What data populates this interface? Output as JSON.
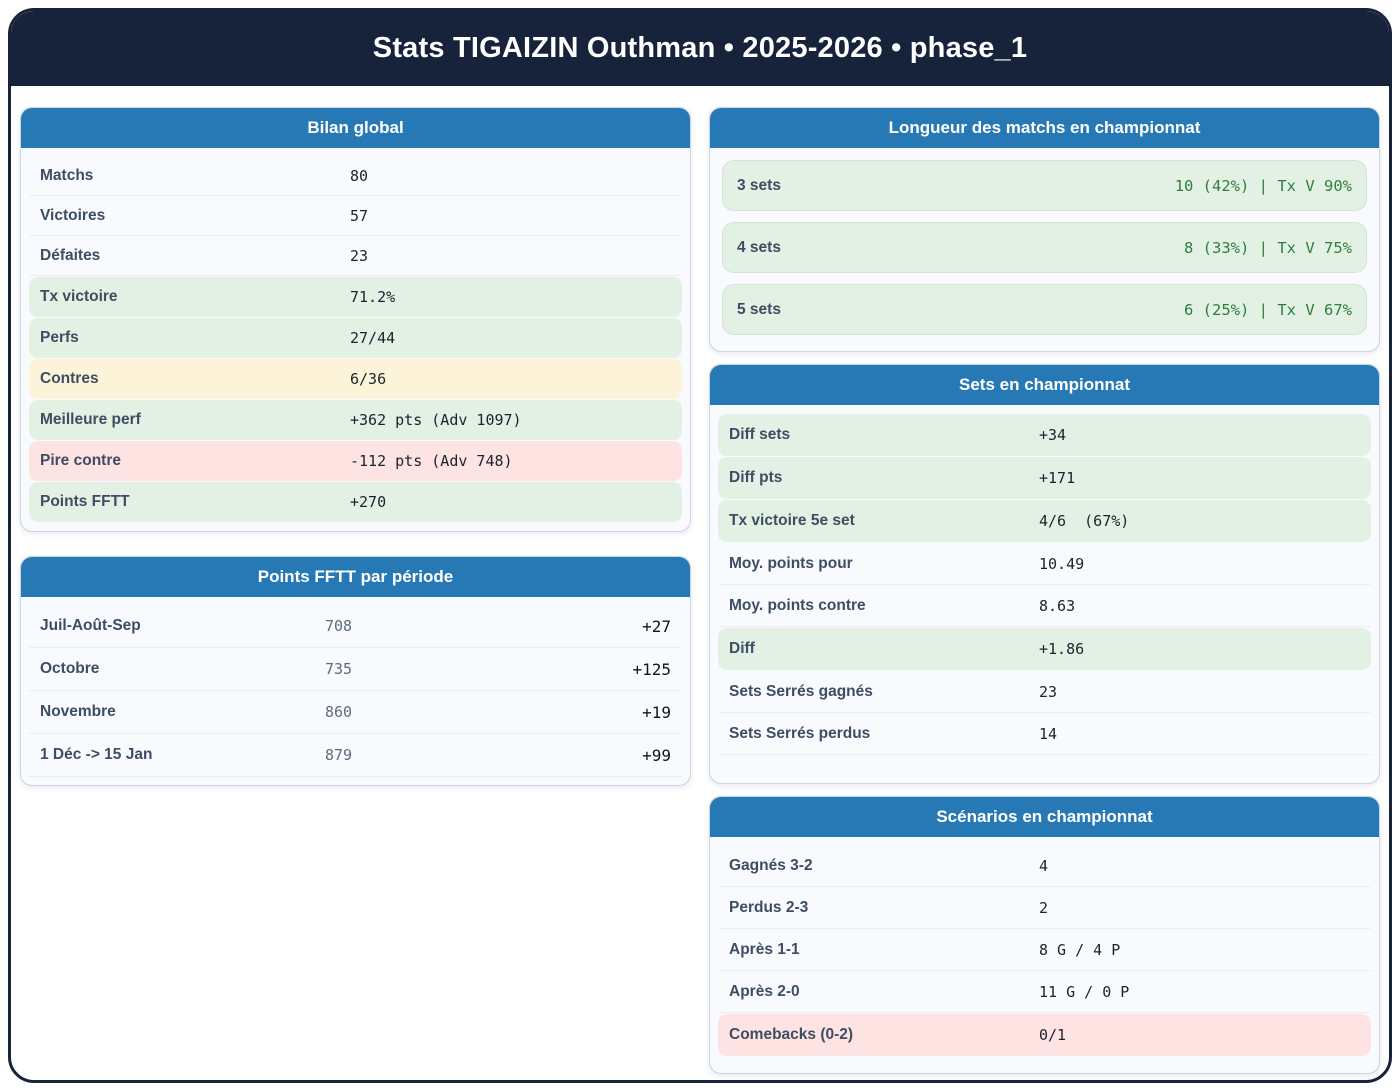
{
  "header": {
    "title": "Stats TIGAIZIN Outhman • 2025-2026 • phase_1"
  },
  "theme": {
    "navy": "#16233b",
    "header_blue": "#2779b5",
    "card_bg": "#f8fafd",
    "card_border": "#c9d6e4",
    "label_color": "#3e4d63",
    "value_color": "#1a232e",
    "muted_value_color": "#5d6c7b",
    "green_text": "#2f7d3f",
    "green_bg": "#e2f1e3",
    "yellow_bg": "#fcf3d8",
    "red_bg": "#fde3e2",
    "separator": "#e9eef4"
  },
  "cards": {
    "bilan": {
      "title": "Bilan global",
      "rows": [
        {
          "label": "Matchs",
          "value": "80",
          "variant": "plain"
        },
        {
          "label": "Victoires",
          "value": "57",
          "variant": "plain"
        },
        {
          "label": "Défaites",
          "value": "23",
          "variant": "plain"
        },
        {
          "label": "Tx victoire",
          "value": "71.2%",
          "variant": "green"
        },
        {
          "label": "Perfs",
          "value": "27/44",
          "variant": "green"
        },
        {
          "label": "Contres",
          "value": "6/36",
          "variant": "yellow"
        },
        {
          "label": "Meilleure perf",
          "value": "+362 pts (Adv 1097)",
          "variant": "green"
        },
        {
          "label": "Pire contre",
          "value": "-112 pts (Adv 748)",
          "variant": "red"
        },
        {
          "label": "Points FFTT",
          "value": "+270",
          "variant": "green"
        }
      ]
    },
    "periodes": {
      "title": "Points FFTT par période",
      "rows": [
        {
          "label": "Juil-Août-Sep",
          "value": "708",
          "delta": "+27"
        },
        {
          "label": "Octobre",
          "value": "735",
          "delta": "+125"
        },
        {
          "label": "Novembre",
          "value": "860",
          "delta": "+19"
        },
        {
          "label": "1 Déc -> 15 Jan",
          "value": "879",
          "delta": "+99"
        }
      ]
    },
    "longueur": {
      "title": "Longueur des matchs en championnat",
      "rows": [
        {
          "label": "3 sets",
          "value": "10 (42%) | Tx V 90%"
        },
        {
          "label": "4 sets",
          "value": "8 (33%) | Tx V 75%"
        },
        {
          "label": "5 sets",
          "value": "6 (25%) | Tx V 67%"
        }
      ]
    },
    "sets": {
      "title": "Sets en championnat",
      "rows": [
        {
          "label": "Diff sets",
          "value": "+34",
          "variant": "green"
        },
        {
          "label": "Diff pts",
          "value": "+171",
          "variant": "green"
        },
        {
          "label": "Tx victoire 5e set",
          "value": "4/6  (67%)",
          "variant": "green"
        },
        {
          "label": "Moy. points pour",
          "value": "10.49",
          "variant": "plain"
        },
        {
          "label": "Moy. points contre",
          "value": "8.63",
          "variant": "plain"
        },
        {
          "label": "Diff",
          "value": "+1.86",
          "variant": "green"
        },
        {
          "label": "Sets Serrés gagnés",
          "value": "23",
          "variant": "plain"
        },
        {
          "label": "Sets Serrés perdus",
          "value": "14",
          "variant": "plain"
        }
      ]
    },
    "scenarios": {
      "title": "Scénarios en championnat",
      "rows": [
        {
          "label": "Gagnés 3-2",
          "value": "4",
          "variant": "plain"
        },
        {
          "label": "Perdus 2-3",
          "value": "2",
          "variant": "plain"
        },
        {
          "label": "Après 1-1",
          "value": "8 G / 4 P",
          "variant": "plain"
        },
        {
          "label": "Après 2-0",
          "value": "11 G / 0 P",
          "variant": "plain"
        },
        {
          "label": "Comebacks (0-2)",
          "value": "0/1",
          "variant": "red"
        }
      ]
    }
  }
}
